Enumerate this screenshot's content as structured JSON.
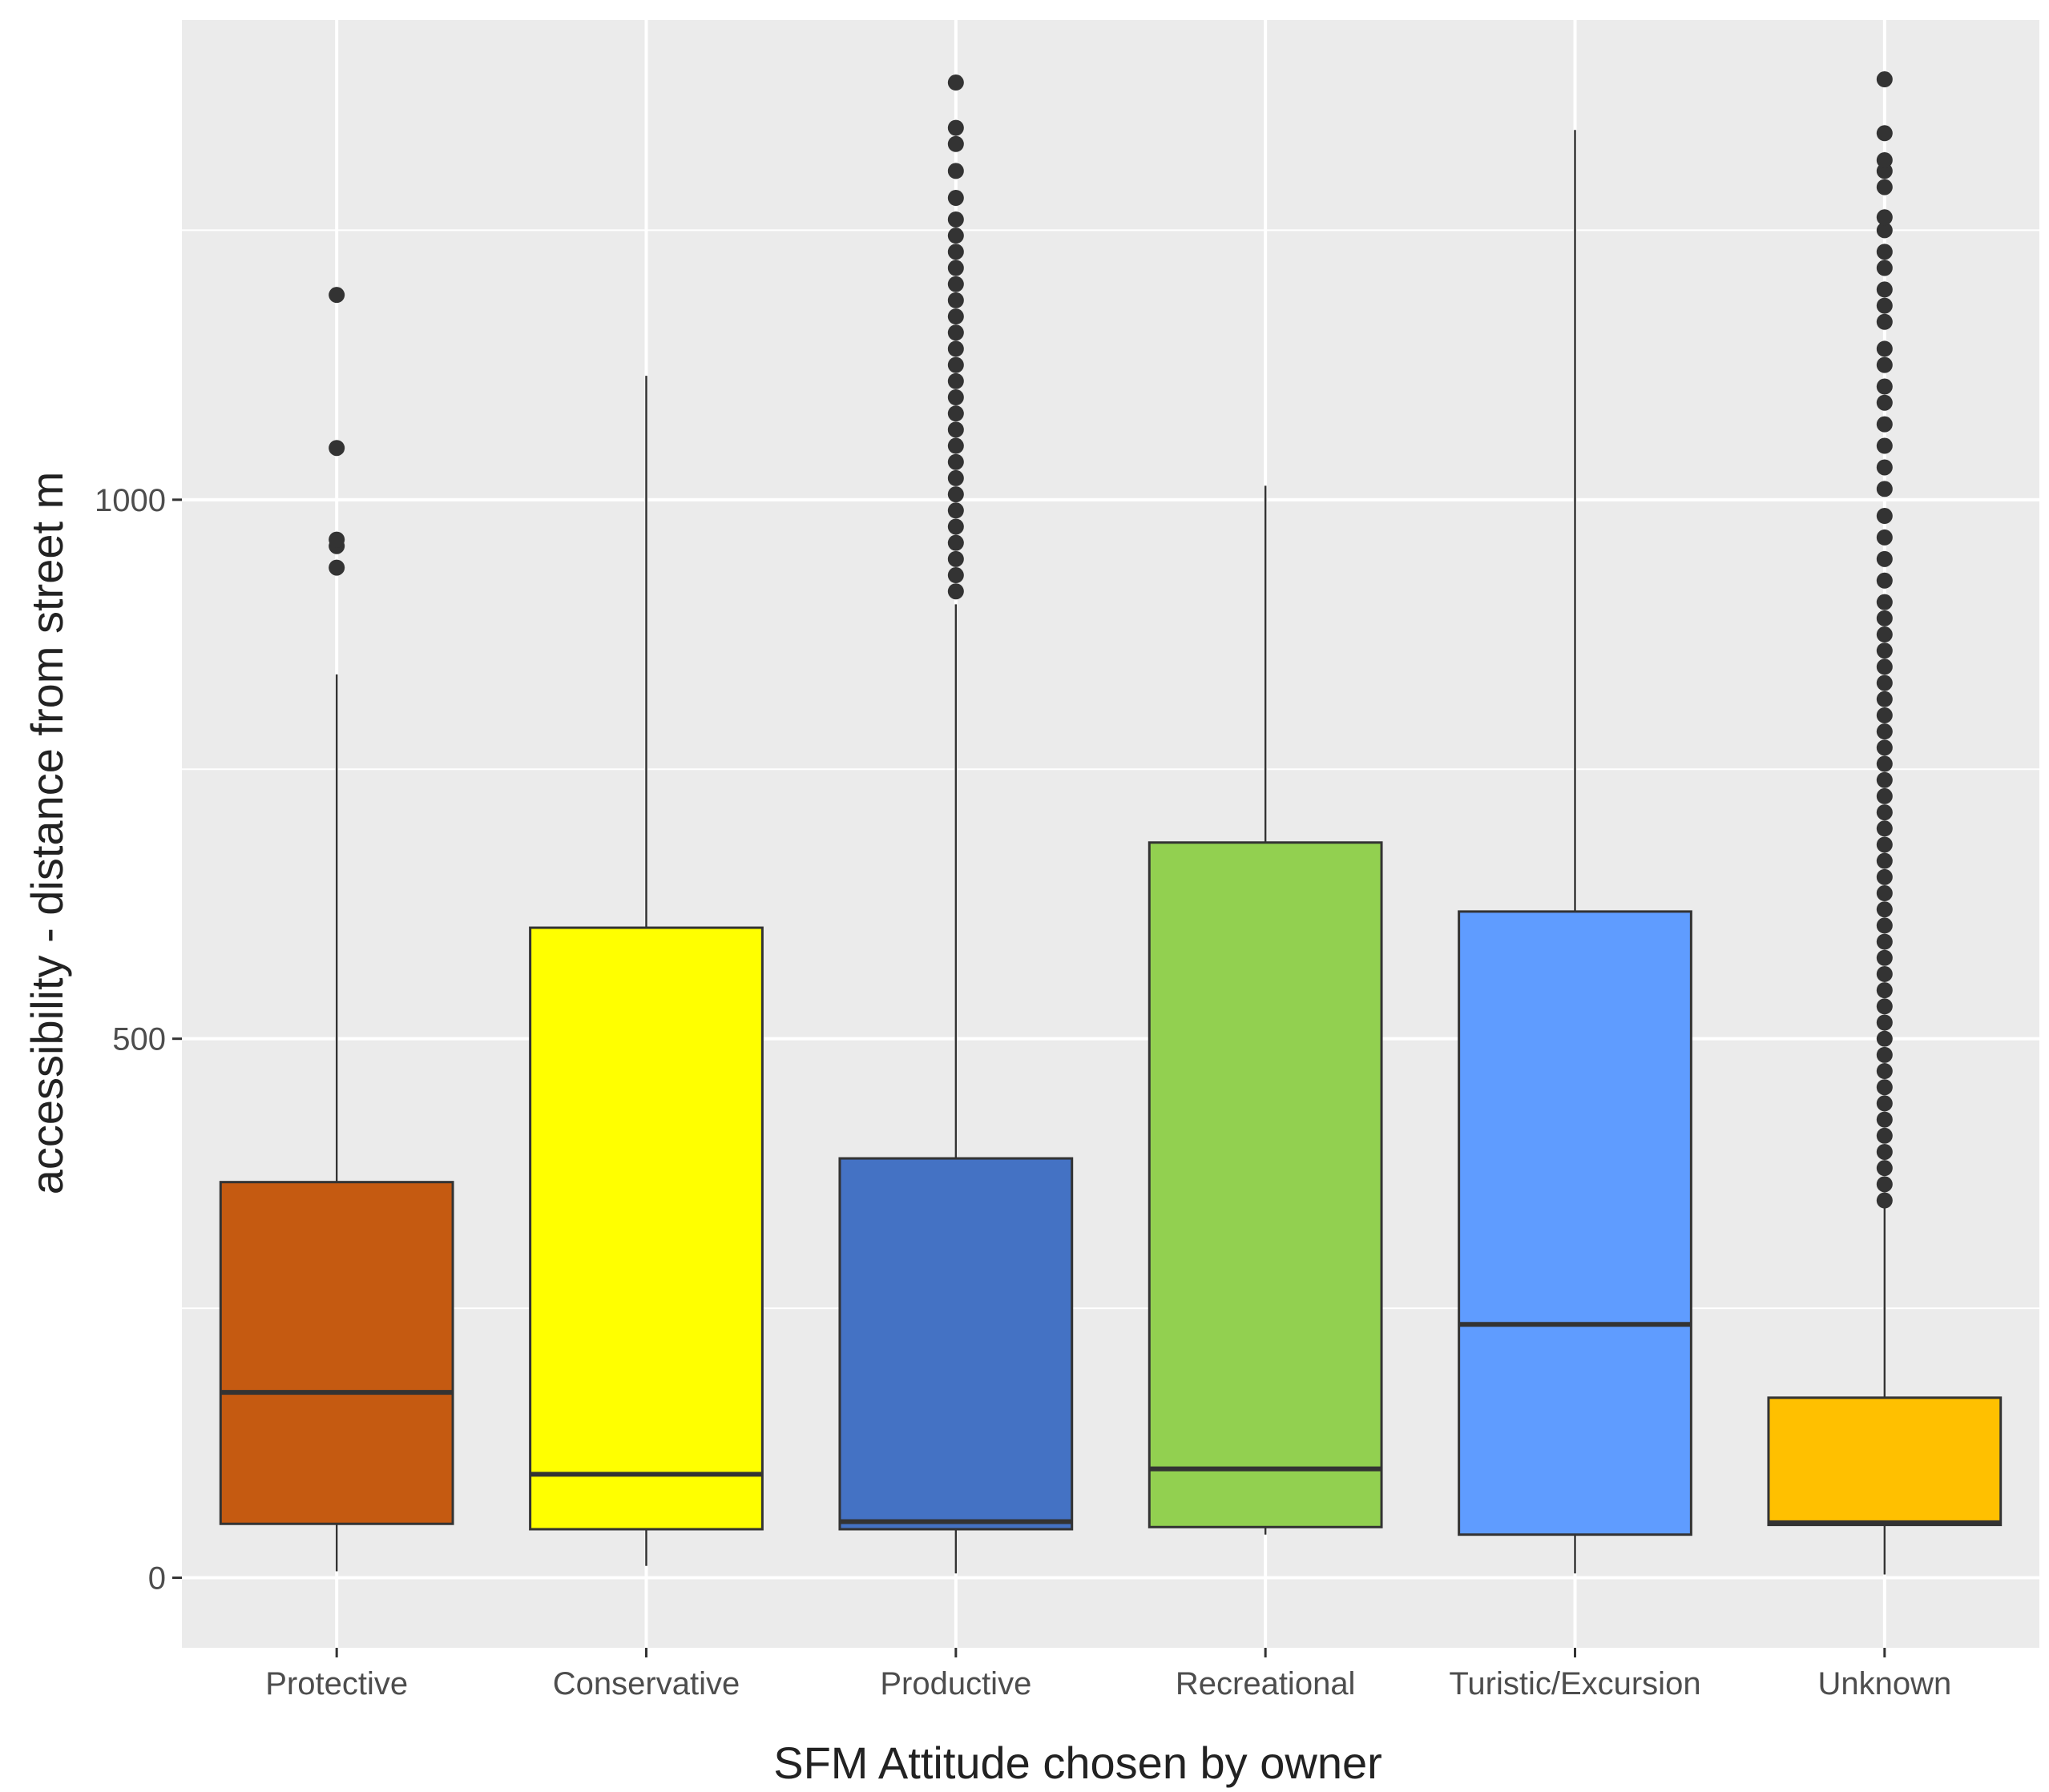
{
  "chart_data": {
    "type": "boxplot",
    "xlabel": "SFM Attitude chosen by owner",
    "ylabel": "accessibility - distance from street m",
    "ylim": [
      -65,
      1445
    ],
    "y_ticks": [
      0,
      500,
      1000
    ],
    "grid": true,
    "legend": "none",
    "panel_background": "#ebebeb",
    "grid_color": "#ffffff",
    "box_outline_color": "#333333",
    "categories": [
      "Protective",
      "Conservative",
      "Productive",
      "Recreational",
      "Turistic/Excursion",
      "Unknown"
    ],
    "boxes": [
      {
        "category": "Protective",
        "color": "#c55a11",
        "q1": 50,
        "median": 172,
        "q3": 367,
        "whisker_low": 6,
        "whisker_high": 838,
        "outliers": [
          937,
          957,
          963,
          1048,
          1190
        ]
      },
      {
        "category": "Conservative",
        "color": "#ffff00",
        "q1": 45,
        "median": 96,
        "q3": 603,
        "whisker_low": 11,
        "whisker_high": 1115,
        "outliers": []
      },
      {
        "category": "Productive",
        "color": "#4472c4",
        "q1": 45,
        "median": 52,
        "q3": 389,
        "whisker_low": 4,
        "whisker_high": 903,
        "outliers": [
          915,
          930,
          945,
          960,
          975,
          990,
          1005,
          1020,
          1035,
          1050,
          1065,
          1080,
          1095,
          1110,
          1125,
          1140,
          1155,
          1170,
          1185,
          1200,
          1215,
          1230,
          1245,
          1260,
          1280,
          1305,
          1330,
          1345,
          1387
        ]
      },
      {
        "category": "Recreational",
        "color": "#92d050",
        "q1": 47,
        "median": 101,
        "q3": 682,
        "whisker_low": 40,
        "whisker_high": 1013,
        "outliers": []
      },
      {
        "category": "Turistic/Excursion",
        "color": "#5f9cff",
        "q1": 40,
        "median": 235,
        "q3": 618,
        "whisker_low": 4,
        "whisker_high": 1343,
        "outliers": []
      },
      {
        "category": "Unknown",
        "color": "#ffc000",
        "q1": 49,
        "median": 51,
        "q3": 167,
        "whisker_low": 3,
        "whisker_high": 347,
        "outliers": [
          350,
          365,
          380,
          395,
          410,
          425,
          440,
          455,
          470,
          485,
          500,
          515,
          530,
          545,
          560,
          575,
          590,
          605,
          620,
          635,
          650,
          665,
          680,
          695,
          710,
          725,
          740,
          755,
          770,
          785,
          800,
          815,
          830,
          845,
          860,
          875,
          890,
          905,
          925,
          945,
          965,
          985,
          1010,
          1030,
          1050,
          1070,
          1090,
          1105,
          1125,
          1140,
          1165,
          1180,
          1195,
          1215,
          1230,
          1250,
          1262,
          1290,
          1305,
          1315,
          1340,
          1390
        ]
      }
    ]
  }
}
